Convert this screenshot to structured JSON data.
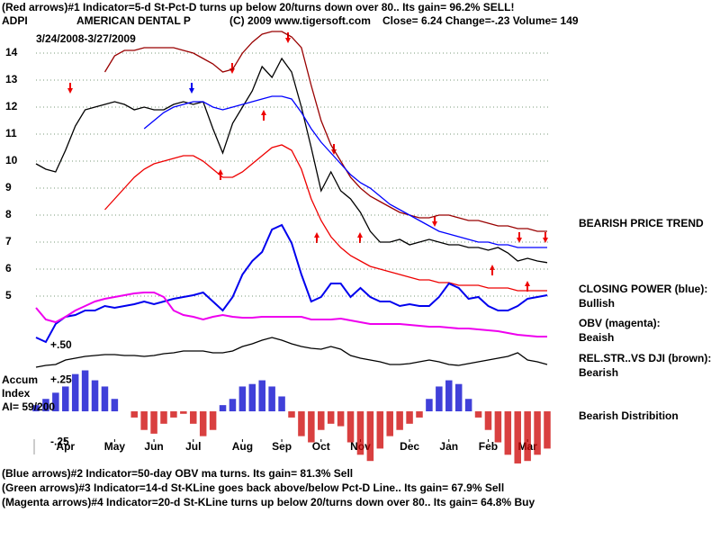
{
  "chart_data": [
    {
      "type": "line",
      "title": "(Red arrows)#1 Indicator=5-d St-Pct-D turns up below 20/turns down over 80.. Its gain= 96.2% SELL!",
      "symbol": "ADPI",
      "company": "AMERICAN DENTAL P",
      "copyright": "(C) 2009 www.tigersoft.com",
      "quote": "Close=  6.24  Change=-.23 Volume= 149",
      "date_range": "3/24/2008-3/27/2009",
      "annotations": [
        "BEARISH PRICE TREND"
      ],
      "footer": [
        "(Blue arrows)#2 Indicator=50-day OBV ma turns. Its gain= 81.3% Sell",
        "(Green arrows)#3 Indicator=14-d St-KLine goes back above/below Pct-D Line.. Its gain= 67.9% Sell",
        "(Magenta arrows)#4 Indicator=20-d St-KLine turns up below 20/turns down over 80.. Its gain= 64.8% Buy"
      ],
      "xlim": [
        0,
        52
      ],
      "xticks": [
        {
          "value": 3,
          "label": "Apr"
        },
        {
          "value": 8,
          "label": "May"
        },
        {
          "value": 12,
          "label": "Jun"
        },
        {
          "value": 16,
          "label": "Jul"
        },
        {
          "value": 21,
          "label": "Aug"
        },
        {
          "value": 25,
          "label": "Sep"
        },
        {
          "value": 29,
          "label": "Oct"
        },
        {
          "value": 33,
          "label": "Nov"
        },
        {
          "value": 38,
          "label": "Dec"
        },
        {
          "value": 42,
          "label": "Jan"
        },
        {
          "value": 46,
          "label": "Feb"
        },
        {
          "value": 50,
          "label": "Mar"
        }
      ],
      "ylim": [
        3.3,
        15.3
      ],
      "yticks": [
        5,
        6,
        7,
        8,
        9,
        10,
        11,
        12,
        13,
        14
      ],
      "grid": true,
      "series": [
        {
          "color": "#000000",
          "values": [
            9.9,
            9.7,
            9.6,
            10.4,
            11.3,
            11.9,
            12.0,
            12.1,
            12.2,
            12.1,
            11.9,
            12.0,
            11.9,
            11.9,
            12.1,
            12.2,
            12.1,
            12.2,
            11.2,
            10.3,
            11.4,
            12.0,
            12.6,
            13.5,
            13.1,
            13.8,
            13.3,
            12.0,
            10.5,
            8.9,
            9.6,
            8.9,
            8.6,
            8.1,
            7.4,
            7.0,
            7.0,
            7.1,
            6.9,
            7.0,
            7.1,
            7.0,
            6.9,
            6.9,
            6.8,
            6.8,
            6.7,
            6.8,
            6.6,
            6.3,
            6.4,
            6.3,
            6.24
          ]
        },
        {
          "color": "#990000",
          "values": [
            null,
            null,
            null,
            null,
            null,
            null,
            null,
            13.3,
            13.9,
            14.1,
            14.1,
            14.2,
            14.2,
            14.2,
            14.2,
            14.1,
            14.0,
            13.8,
            13.6,
            13.3,
            13.4,
            14.0,
            14.4,
            14.7,
            14.8,
            14.8,
            14.6,
            14.2,
            12.8,
            11.5,
            10.6,
            10.0,
            9.4,
            9.0,
            8.7,
            8.5,
            8.3,
            8.1,
            8.0,
            7.9,
            7.9,
            8.0,
            8.0,
            7.9,
            7.8,
            7.8,
            7.7,
            7.6,
            7.6,
            7.5,
            7.5,
            7.4,
            7.4
          ]
        },
        {
          "color": "#ee0000",
          "values": [
            null,
            null,
            null,
            null,
            null,
            null,
            null,
            8.2,
            8.6,
            9.0,
            9.4,
            9.7,
            9.9,
            10.0,
            10.1,
            10.2,
            10.2,
            10.0,
            9.7,
            9.4,
            9.4,
            9.6,
            9.9,
            10.2,
            10.5,
            10.6,
            10.4,
            9.7,
            8.6,
            7.8,
            7.2,
            6.8,
            6.5,
            6.3,
            6.1,
            6.0,
            5.9,
            5.8,
            5.7,
            5.6,
            5.6,
            5.5,
            5.5,
            5.4,
            5.4,
            5.4,
            5.3,
            5.3,
            5.3,
            5.2,
            5.2,
            5.2,
            5.2
          ]
        },
        {
          "color": "#0000ff",
          "values": [
            null,
            null,
            null,
            null,
            null,
            null,
            null,
            null,
            null,
            null,
            null,
            11.2,
            11.5,
            11.8,
            12.0,
            12.1,
            12.2,
            12.2,
            12.0,
            11.9,
            12.0,
            12.1,
            12.2,
            12.3,
            12.4,
            12.4,
            12.3,
            11.8,
            11.2,
            10.7,
            10.3,
            9.9,
            9.5,
            9.2,
            9.0,
            8.7,
            8.4,
            8.2,
            8.0,
            7.8,
            7.6,
            7.4,
            7.3,
            7.2,
            7.1,
            7.0,
            7.0,
            6.9,
            6.9,
            6.8,
            6.8,
            6.8,
            6.8
          ]
        }
      ]
    },
    {
      "type": "line",
      "ylim": [
        -20,
        170
      ],
      "series": [
        {
          "name": "CLOSING POWER (blue):",
          "status": "Bullish",
          "color": "#0000ee",
          "values": [
            25,
            20,
            40,
            48,
            50,
            55,
            55,
            60,
            58,
            60,
            62,
            65,
            62,
            65,
            68,
            70,
            72,
            75,
            65,
            55,
            70,
            95,
            110,
            120,
            145,
            150,
            130,
            95,
            65,
            70,
            85,
            85,
            70,
            80,
            70,
            65,
            65,
            60,
            62,
            60,
            60,
            70,
            85,
            80,
            68,
            70,
            60,
            55,
            55,
            60,
            68,
            70,
            72
          ]
        },
        {
          "name": "OBV (magenta):",
          "status": "Beaish",
          "color": "#ee00ee",
          "values": [
            58,
            45,
            42,
            48,
            55,
            60,
            65,
            68,
            70,
            72,
            74,
            75,
            75,
            70,
            55,
            50,
            48,
            45,
            48,
            50,
            48,
            47,
            47,
            48,
            48,
            48,
            48,
            48,
            45,
            45,
            45,
            46,
            44,
            42,
            40,
            40,
            40,
            40,
            39,
            38,
            37,
            37,
            36,
            35,
            35,
            34,
            33,
            32,
            30,
            28,
            27,
            26,
            26
          ]
        },
        {
          "name": "REL.STR..VS DJI (brown):",
          "status": "Bearish",
          "color": "#000000",
          "values": [
            -8,
            -6,
            -5,
            0,
            2,
            4,
            5,
            6,
            6,
            5,
            5,
            4,
            5,
            7,
            8,
            10,
            10,
            10,
            8,
            8,
            10,
            15,
            18,
            22,
            25,
            22,
            18,
            15,
            13,
            12,
            15,
            12,
            5,
            2,
            0,
            -2,
            -5,
            -5,
            -4,
            -2,
            0,
            -2,
            -5,
            -6,
            -4,
            -2,
            0,
            2,
            4,
            8,
            0,
            -2,
            -5
          ]
        }
      ]
    },
    {
      "type": "histogram",
      "title": [
        "Accum",
        "Index",
        "AI= 59/200"
      ],
      "annotations": [
        "+.50",
        "Bearish Distribition"
      ],
      "ylim": [
        -0.5,
        0.37
      ],
      "yticks": [
        {
          "value": 0.25,
          "label": "+.25"
        },
        {
          "value": -0.25,
          "label": "-.25"
        }
      ],
      "pos_color": "#0000cc",
      "neg_color": "#cc0000",
      "values": [
        0.05,
        0.1,
        0.15,
        0.2,
        0.3,
        0.33,
        0.25,
        0.2,
        0.1,
        0,
        -0.05,
        -0.15,
        -0.18,
        -0.1,
        -0.05,
        -0.02,
        -0.1,
        -0.2,
        -0.15,
        0.05,
        0.1,
        0.2,
        0.22,
        0.25,
        0.2,
        0.12,
        -0.05,
        -0.2,
        -0.25,
        -0.15,
        -0.1,
        -0.12,
        -0.25,
        -0.35,
        -0.4,
        -0.3,
        -0.2,
        -0.15,
        -0.1,
        -0.05,
        0.1,
        0.2,
        0.25,
        0.22,
        0.1,
        -0.05,
        -0.15,
        -0.25,
        -0.35,
        -0.42,
        -0.4,
        -0.35,
        -0.3
      ]
    }
  ]
}
